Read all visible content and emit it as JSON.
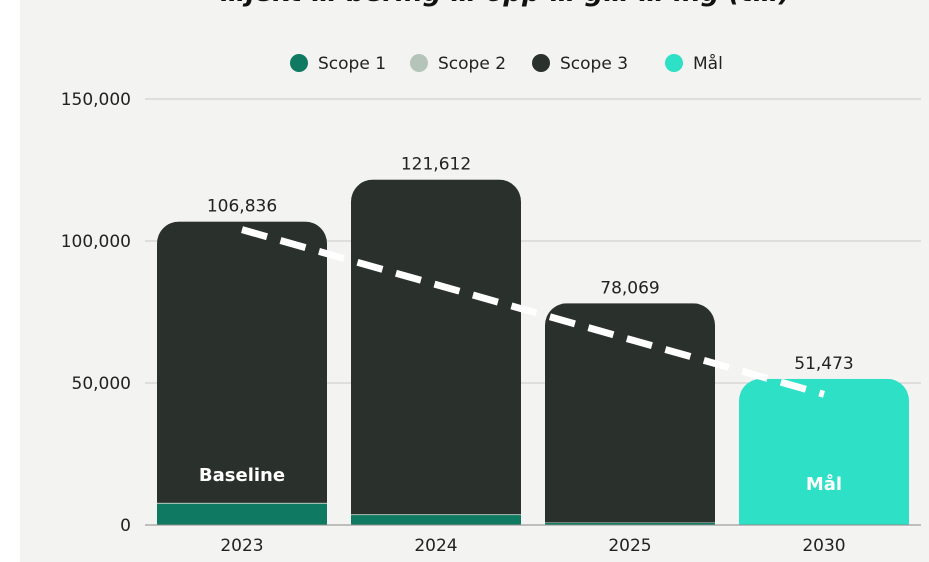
{
  "title": "…jekt … bering … opp … g… … ing (t…)",
  "legend": [
    {
      "name": "Scope 1",
      "color": "#0f7a61"
    },
    {
      "name": "Scope 2",
      "color": "#b5c4b9"
    },
    {
      "name": "Scope 3",
      "color": "#2a312c"
    },
    {
      "name": "Mål",
      "color": "#2ee0c6"
    }
  ],
  "chart_data": {
    "type": "bar",
    "stacked": true,
    "categories": [
      "2023",
      "2024",
      "2025",
      "2030"
    ],
    "series": [
      {
        "name": "Scope 1",
        "color": "#0f7a61",
        "values": [
          7500,
          3500,
          700,
          null
        ]
      },
      {
        "name": "Scope 2",
        "color": "#b5c4b9",
        "values": [
          300,
          300,
          200,
          null
        ]
      },
      {
        "name": "Scope 3",
        "color": "#2a312c",
        "values": [
          99036,
          117812,
          77169,
          null
        ]
      },
      {
        "name": "Mål",
        "color": "#2ee0c6",
        "values": [
          null,
          null,
          null,
          51473
        ]
      }
    ],
    "totals": [
      "106,836",
      "121,612",
      "78,069",
      "51,473"
    ],
    "total_values": [
      106836,
      121612,
      78069,
      51473
    ],
    "bar_labels": {
      "2023": "Baseline",
      "2030": "Mål"
    },
    "yticks": [
      0,
      50000,
      100000,
      150000
    ],
    "ytick_labels": [
      "0",
      "50,000",
      "100,000",
      "150,000"
    ],
    "ylim": [
      0,
      150000
    ],
    "trend_line": {
      "style": "dashed",
      "color": "#ffffff",
      "from": {
        "category": "2023",
        "value": 104000
      },
      "to": {
        "category": "2030",
        "value": 46000
      }
    },
    "grid": true,
    "legend_position": "top-center"
  }
}
